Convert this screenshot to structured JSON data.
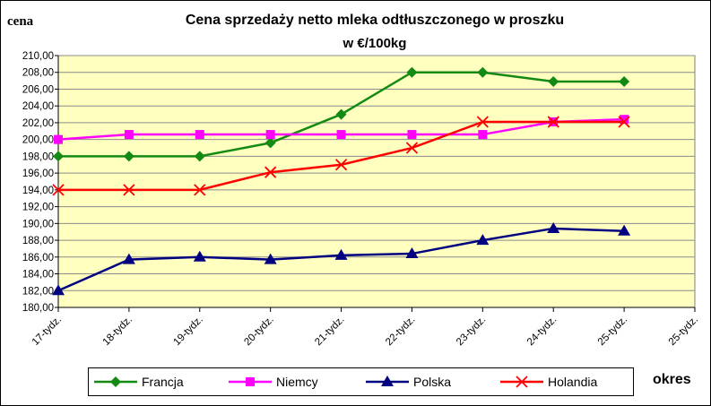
{
  "chart_data": {
    "type": "line",
    "title": "Cena sprzedaży netto mleka odtłuszczonego w proszku",
    "subtitle": "w €/100kg",
    "y_label": "cena",
    "x_label": "okres",
    "categories": [
      "17-tydz.",
      "18-tydz.",
      "19-tydz.",
      "20-tydz.",
      "21-tydz.",
      "22-tydz.",
      "23-tydz.",
      "24-tydz.",
      "25-tydz.",
      "25-tydz."
    ],
    "series": [
      {
        "name": "Francja",
        "color": "#138a13",
        "marker": "diamond",
        "values": [
          198,
          198,
          198,
          199.6,
          203,
          208,
          208,
          206.9,
          206.9,
          null
        ]
      },
      {
        "name": "Niemcy",
        "color": "#ff00ff",
        "marker": "square",
        "values": [
          200,
          200.6,
          200.6,
          200.6,
          200.6,
          200.6,
          200.6,
          202.1,
          202.4,
          null
        ]
      },
      {
        "name": "Polska",
        "color": "#000080",
        "marker": "triangle",
        "values": [
          182,
          185.7,
          186,
          185.7,
          186.2,
          186.4,
          188,
          189.4,
          189.1,
          null
        ]
      },
      {
        "name": "Holandia",
        "color": "#ff0000",
        "marker": "x",
        "values": [
          194,
          194,
          194,
          196.1,
          197,
          199,
          202.1,
          202.1,
          202.1,
          null
        ]
      }
    ],
    "ylim": [
      180,
      210
    ],
    "yticks": [
      {
        "value": 180,
        "label": "180,00"
      },
      {
        "value": 182,
        "label": "182,00"
      },
      {
        "value": 184,
        "label": "184,00"
      },
      {
        "value": 186,
        "label": "186,00"
      },
      {
        "value": 188,
        "label": "188,00"
      },
      {
        "value": 190,
        "label": "190,00"
      },
      {
        "value": 192,
        "label": "192,00"
      },
      {
        "value": 194,
        "label": "194,00"
      },
      {
        "value": 196,
        "label": "196,00"
      },
      {
        "value": 198,
        "label": "198,00"
      },
      {
        "value": 200,
        "label": "200,00"
      },
      {
        "value": 202,
        "label": "202,00"
      },
      {
        "value": 204,
        "label": "204,00"
      },
      {
        "value": 206,
        "label": "206,00"
      },
      {
        "value": 208,
        "label": "208,00"
      },
      {
        "value": 210,
        "label": "210,00"
      }
    ],
    "grid": true,
    "plot_background": "#ffffc0",
    "legend": "bottom"
  }
}
